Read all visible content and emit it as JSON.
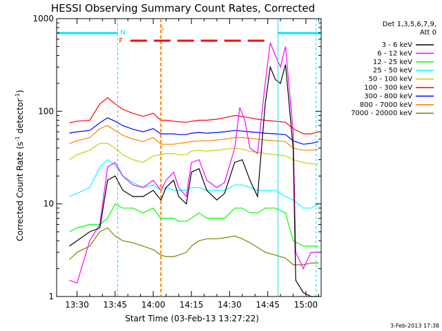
{
  "chart_data": {
    "type": "line",
    "title": "HESSI Observing Summary Count Rates, Corrected",
    "xlabel": "Start Time (03-Feb-13 13:27:22)",
    "ylabel_main": "Corrected Count Rate (s",
    "ylabel_sup1": "-1",
    "ylabel_mid": " detector",
    "ylabel_sup2": "-1",
    "ylabel_end": ")",
    "timestamp": "3-Feb-2013 17:38",
    "y_scale": "log",
    "ylim": [
      1,
      1000
    ],
    "xlim_minutes": [
      -8,
      60
    ],
    "y_ticks": [
      {
        "value": 1,
        "label": "1"
      },
      {
        "value": 10,
        "label": "10"
      },
      {
        "value": 100,
        "label": "100"
      },
      {
        "value": 1000,
        "label": "1000"
      }
    ],
    "x_ticks": [
      {
        "value": 0,
        "label": "13:30"
      },
      {
        "value": 15,
        "label": "13:45"
      },
      {
        "value": 30,
        "label": "14:00"
      },
      {
        "value": 45,
        "label": "14:15"
      },
      {
        "value": 60,
        "label": "14:30"
      },
      {
        "value": 75,
        "label": "14:45"
      },
      {
        "value": 90,
        "label": "15:00"
      }
    ],
    "legend_title_1": "Det 1,3,5,6,7,9,",
    "legend_title_2": "Att 0",
    "legend_placement": "right",
    "markers": [
      {
        "label": "N",
        "color": "#00e5ff"
      },
      {
        "label": "S",
        "color": "#ff8c00"
      },
      {
        "label": "F",
        "color": "#ff0000"
      }
    ],
    "series": [
      {
        "name": "3 - 6 keV",
        "color": "#000000",
        "points": [
          [
            -3,
            3.5
          ],
          [
            0,
            4
          ],
          [
            5,
            5
          ],
          [
            9,
            5.5
          ],
          [
            12,
            18
          ],
          [
            15,
            20
          ],
          [
            18,
            14
          ],
          [
            22,
            12
          ],
          [
            26,
            12
          ],
          [
            30,
            14
          ],
          [
            33,
            11
          ],
          [
            35,
            15
          ],
          [
            38,
            18
          ],
          [
            40,
            12
          ],
          [
            43,
            10
          ],
          [
            45,
            22
          ],
          [
            48,
            24
          ],
          [
            51,
            14
          ],
          [
            55,
            11
          ],
          [
            58,
            13
          ],
          [
            62,
            28
          ],
          [
            65,
            30
          ],
          [
            68,
            18
          ],
          [
            71,
            12
          ],
          [
            74,
            120
          ],
          [
            76,
            300
          ],
          [
            78,
            220
          ],
          [
            80,
            200
          ],
          [
            82,
            320
          ],
          [
            85,
            40
          ],
          [
            86,
            1.5
          ],
          [
            89,
            1.1
          ],
          [
            92,
            1.0
          ],
          [
            95,
            1.0
          ]
        ]
      },
      {
        "name": "6 - 12 keV",
        "color": "#ff00ff",
        "points": [
          [
            -3,
            1.5
          ],
          [
            0,
            1.4
          ],
          [
            5,
            4
          ],
          [
            9,
            6
          ],
          [
            12,
            25
          ],
          [
            15,
            28
          ],
          [
            18,
            20
          ],
          [
            22,
            16
          ],
          [
            26,
            15
          ],
          [
            30,
            18
          ],
          [
            33,
            14
          ],
          [
            35,
            18
          ],
          [
            38,
            22
          ],
          [
            40,
            15
          ],
          [
            43,
            12
          ],
          [
            45,
            28
          ],
          [
            48,
            30
          ],
          [
            51,
            18
          ],
          [
            55,
            15
          ],
          [
            58,
            17
          ],
          [
            62,
            40
          ],
          [
            64,
            110
          ],
          [
            66,
            80
          ],
          [
            68,
            40
          ],
          [
            71,
            35
          ],
          [
            74,
            200
          ],
          [
            76,
            550
          ],
          [
            78,
            400
          ],
          [
            80,
            300
          ],
          [
            82,
            500
          ],
          [
            85,
            60
          ],
          [
            86,
            3
          ],
          [
            89,
            2
          ],
          [
            92,
            3
          ],
          [
            95,
            3
          ]
        ]
      },
      {
        "name": "12 - 25 keV",
        "color": "#00ff00",
        "points": [
          [
            -3,
            5
          ],
          [
            0,
            5.5
          ],
          [
            5,
            6
          ],
          [
            9,
            6
          ],
          [
            12,
            7
          ],
          [
            15,
            10
          ],
          [
            18,
            9
          ],
          [
            22,
            9
          ],
          [
            26,
            8
          ],
          [
            30,
            9
          ],
          [
            33,
            7
          ],
          [
            35,
            7
          ],
          [
            38,
            7
          ],
          [
            40,
            6.5
          ],
          [
            43,
            6.5
          ],
          [
            45,
            7
          ],
          [
            48,
            8
          ],
          [
            51,
            7
          ],
          [
            55,
            7
          ],
          [
            58,
            7
          ],
          [
            62,
            9
          ],
          [
            65,
            9
          ],
          [
            68,
            8
          ],
          [
            71,
            8
          ],
          [
            74,
            9
          ],
          [
            78,
            9
          ],
          [
            82,
            8
          ],
          [
            85,
            4
          ],
          [
            89,
            3.5
          ],
          [
            92,
            3.5
          ],
          [
            95,
            3.5
          ]
        ]
      },
      {
        "name": "25 - 50 keV",
        "color": "#00ffff",
        "points": [
          [
            -3,
            12
          ],
          [
            0,
            13
          ],
          [
            5,
            15
          ],
          [
            9,
            25
          ],
          [
            12,
            30
          ],
          [
            15,
            26
          ],
          [
            18,
            20
          ],
          [
            22,
            17
          ],
          [
            26,
            15
          ],
          [
            30,
            16
          ],
          [
            33,
            14
          ],
          [
            35,
            15
          ],
          [
            38,
            14
          ],
          [
            40,
            14
          ],
          [
            43,
            14
          ],
          [
            45,
            15
          ],
          [
            48,
            15
          ],
          [
            51,
            14
          ],
          [
            55,
            14
          ],
          [
            58,
            14
          ],
          [
            62,
            16
          ],
          [
            65,
            16
          ],
          [
            68,
            15
          ],
          [
            71,
            14
          ],
          [
            74,
            14
          ],
          [
            78,
            14
          ],
          [
            82,
            12
          ],
          [
            85,
            11
          ],
          [
            89,
            9
          ],
          [
            92,
            9
          ],
          [
            95,
            10
          ]
        ]
      },
      {
        "name": "50 - 100 keV",
        "color": "#cccc00",
        "points": [
          [
            -3,
            30
          ],
          [
            0,
            34
          ],
          [
            5,
            38
          ],
          [
            9,
            45
          ],
          [
            12,
            45
          ],
          [
            15,
            40
          ],
          [
            18,
            34
          ],
          [
            22,
            30
          ],
          [
            26,
            28
          ],
          [
            30,
            33
          ],
          [
            33,
            34
          ],
          [
            35,
            35
          ],
          [
            38,
            35
          ],
          [
            40,
            34
          ],
          [
            43,
            34
          ],
          [
            45,
            37
          ],
          [
            48,
            38
          ],
          [
            51,
            37
          ],
          [
            55,
            38
          ],
          [
            58,
            39
          ],
          [
            62,
            40
          ],
          [
            65,
            39
          ],
          [
            68,
            37
          ],
          [
            71,
            36
          ],
          [
            74,
            35
          ],
          [
            78,
            34
          ],
          [
            82,
            33
          ],
          [
            85,
            30
          ],
          [
            89,
            28
          ],
          [
            92,
            27
          ],
          [
            95,
            27
          ]
        ]
      },
      {
        "name": "100 - 300 keV",
        "color": "#ff0000",
        "points": [
          [
            -3,
            75
          ],
          [
            0,
            78
          ],
          [
            5,
            80
          ],
          [
            9,
            120
          ],
          [
            12,
            140
          ],
          [
            15,
            120
          ],
          [
            18,
            105
          ],
          [
            22,
            95
          ],
          [
            26,
            88
          ],
          [
            30,
            95
          ],
          [
            33,
            80
          ],
          [
            35,
            80
          ],
          [
            38,
            78
          ],
          [
            40,
            77
          ],
          [
            43,
            76
          ],
          [
            45,
            78
          ],
          [
            48,
            80
          ],
          [
            51,
            80
          ],
          [
            55,
            82
          ],
          [
            58,
            85
          ],
          [
            62,
            90
          ],
          [
            65,
            88
          ],
          [
            68,
            85
          ],
          [
            71,
            82
          ],
          [
            74,
            80
          ],
          [
            78,
            78
          ],
          [
            82,
            76
          ],
          [
            85,
            65
          ],
          [
            89,
            57
          ],
          [
            92,
            57
          ],
          [
            95,
            60
          ]
        ]
      },
      {
        "name": "300 - 800 keV",
        "color": "#0000ff",
        "points": [
          [
            -3,
            58
          ],
          [
            0,
            60
          ],
          [
            5,
            62
          ],
          [
            9,
            75
          ],
          [
            12,
            85
          ],
          [
            15,
            78
          ],
          [
            18,
            70
          ],
          [
            22,
            64
          ],
          [
            26,
            60
          ],
          [
            30,
            65
          ],
          [
            33,
            57
          ],
          [
            35,
            57
          ],
          [
            38,
            57
          ],
          [
            40,
            56
          ],
          [
            43,
            56
          ],
          [
            45,
            58
          ],
          [
            48,
            59
          ],
          [
            51,
            58
          ],
          [
            55,
            59
          ],
          [
            58,
            60
          ],
          [
            62,
            62
          ],
          [
            65,
            61
          ],
          [
            68,
            60
          ],
          [
            71,
            59
          ],
          [
            74,
            58
          ],
          [
            78,
            57
          ],
          [
            82,
            56
          ],
          [
            85,
            48
          ],
          [
            89,
            44
          ],
          [
            92,
            45
          ],
          [
            95,
            47
          ]
        ]
      },
      {
        "name": "800 - 7000 keV",
        "color": "#ff8000",
        "points": [
          [
            -3,
            45
          ],
          [
            0,
            48
          ],
          [
            5,
            52
          ],
          [
            9,
            65
          ],
          [
            12,
            70
          ],
          [
            15,
            62
          ],
          [
            18,
            55
          ],
          [
            22,
            50
          ],
          [
            26,
            47
          ],
          [
            30,
            52
          ],
          [
            33,
            44
          ],
          [
            35,
            44
          ],
          [
            38,
            44
          ],
          [
            40,
            45
          ],
          [
            43,
            46
          ],
          [
            45,
            47
          ],
          [
            48,
            48
          ],
          [
            51,
            48
          ],
          [
            55,
            49
          ],
          [
            58,
            50
          ],
          [
            62,
            52
          ],
          [
            65,
            52
          ],
          [
            68,
            51
          ],
          [
            71,
            50
          ],
          [
            74,
            49
          ],
          [
            78,
            48
          ],
          [
            82,
            47
          ],
          [
            85,
            40
          ],
          [
            89,
            38
          ],
          [
            92,
            38
          ],
          [
            95,
            39
          ]
        ]
      },
      {
        "name": "7000 - 20000 keV",
        "color": "#808000",
        "points": [
          [
            -3,
            2.5
          ],
          [
            0,
            3
          ],
          [
            5,
            3.5
          ],
          [
            9,
            5
          ],
          [
            12,
            5.5
          ],
          [
            15,
            4.5
          ],
          [
            18,
            4
          ],
          [
            22,
            3.8
          ],
          [
            26,
            3.5
          ],
          [
            30,
            3.2
          ],
          [
            33,
            2.8
          ],
          [
            35,
            2.7
          ],
          [
            38,
            2.7
          ],
          [
            40,
            2.8
          ],
          [
            43,
            3
          ],
          [
            45,
            3.5
          ],
          [
            48,
            4
          ],
          [
            51,
            4.2
          ],
          [
            55,
            4.2
          ],
          [
            58,
            4.3
          ],
          [
            62,
            4.5
          ],
          [
            65,
            4.2
          ],
          [
            68,
            3.8
          ],
          [
            71,
            3.4
          ],
          [
            74,
            3
          ],
          [
            78,
            2.8
          ],
          [
            82,
            2.6
          ],
          [
            85,
            2.2
          ],
          [
            89,
            2.2
          ],
          [
            92,
            2.3
          ],
          [
            95,
            2.3
          ]
        ]
      }
    ]
  }
}
